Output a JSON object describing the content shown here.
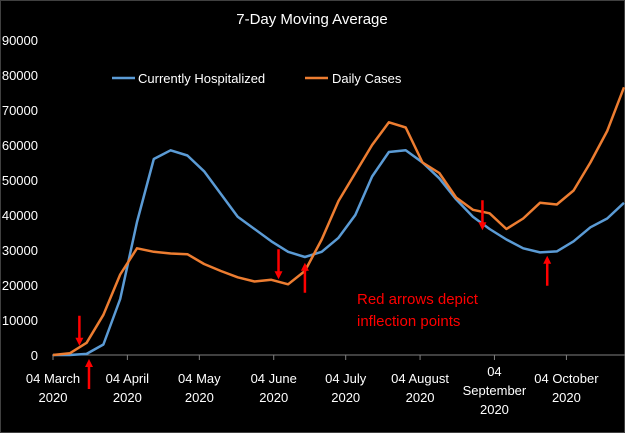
{
  "chart_data": {
    "type": "line",
    "title": "7-Day Moving Average",
    "xlabel": "",
    "ylabel": "",
    "ylim": [
      0,
      90000
    ],
    "yticks": [
      0,
      10000,
      20000,
      30000,
      40000,
      50000,
      60000,
      70000,
      80000,
      90000
    ],
    "xlim": [
      "2020-03-04",
      "2020-10-28"
    ],
    "xticks": [
      {
        "date": "2020-03-04",
        "label": "04 March 2020"
      },
      {
        "date": "2020-04-04",
        "label": "04 April 2020"
      },
      {
        "date": "2020-05-04",
        "label": "04 May 2020"
      },
      {
        "date": "2020-06-04",
        "label": "04 June 2020"
      },
      {
        "date": "2020-07-04",
        "label": "04 July 2020"
      },
      {
        "date": "2020-08-04",
        "label": "04 August 2020"
      },
      {
        "date": "2020-09-04",
        "label": "04 September 2020"
      },
      {
        "date": "2020-10-04",
        "label": "04 October 2020"
      }
    ],
    "grid": false,
    "legend_position": "top-left",
    "x": [
      "2020-03-04",
      "2020-03-11",
      "2020-03-18",
      "2020-03-25",
      "2020-04-01",
      "2020-04-08",
      "2020-04-15",
      "2020-04-22",
      "2020-04-29",
      "2020-05-06",
      "2020-05-13",
      "2020-05-20",
      "2020-05-27",
      "2020-06-03",
      "2020-06-10",
      "2020-06-17",
      "2020-06-24",
      "2020-07-01",
      "2020-07-08",
      "2020-07-15",
      "2020-07-22",
      "2020-07-29",
      "2020-08-05",
      "2020-08-12",
      "2020-08-19",
      "2020-08-26",
      "2020-09-02",
      "2020-09-09",
      "2020-09-16",
      "2020-09-23",
      "2020-09-30",
      "2020-10-07",
      "2020-10-14",
      "2020-10-21",
      "2020-10-28"
    ],
    "series": [
      {
        "name": "Currently Hospitalized",
        "color": "#5b9bd5",
        "values": [
          0,
          0,
          300,
          3000,
          16000,
          38000,
          56000,
          58500,
          57000,
          52500,
          46000,
          39500,
          36000,
          32500,
          29500,
          28000,
          29500,
          33500,
          40000,
          51000,
          58000,
          58500,
          55000,
          50500,
          44500,
          39500,
          36000,
          33000,
          30500,
          29300,
          29600,
          32500,
          36500,
          39000,
          43500
        ]
      },
      {
        "name": "Daily Cases",
        "color": "#ed7d31",
        "values": [
          0,
          500,
          3500,
          11500,
          23000,
          30500,
          29500,
          29000,
          28800,
          26000,
          24000,
          22200,
          21000,
          21500,
          20200,
          24000,
          33000,
          44000,
          52000,
          60000,
          66500,
          65000,
          55000,
          52000,
          45000,
          41500,
          40500,
          36000,
          39000,
          43500,
          43000,
          47000,
          55000,
          64000,
          76500
        ]
      }
    ],
    "annotation_text": "Red arrows depict inflection points",
    "annotation_color": "#ff0000",
    "arrows": [
      {
        "date": "2020-03-15",
        "value": 1500,
        "direction": "down"
      },
      {
        "date": "2020-03-19",
        "value": 0,
        "direction": "up"
      },
      {
        "date": "2020-06-06",
        "value": 20500,
        "direction": "down"
      },
      {
        "date": "2020-06-17",
        "value": 27500,
        "direction": "up"
      },
      {
        "date": "2020-08-30",
        "value": 34500,
        "direction": "down"
      },
      {
        "date": "2020-09-26",
        "value": 29500,
        "direction": "up"
      }
    ]
  }
}
